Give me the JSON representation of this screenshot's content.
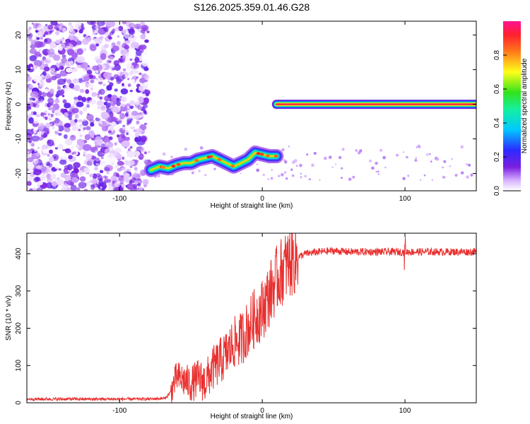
{
  "title": "S126.2025.359.01.46.G28",
  "colors": {
    "snr_line": "#e8302f",
    "frame": "#000000"
  },
  "chart_data": [
    {
      "type": "heatmap",
      "xlabel": "Height of straight line (km)",
      "ylabel": "Frequency (Hz)",
      "xlim": [
        -165,
        150
      ],
      "ylim": [
        -25,
        24
      ],
      "xticks": [
        -100,
        0,
        100
      ],
      "xtick_labels": [
        "-100",
        "0",
        "100"
      ],
      "yticks": [
        -20,
        -10,
        0,
        10,
        20
      ],
      "ytick_labels": [
        "-20",
        "-10",
        "0",
        "10",
        "20"
      ],
      "colorbar": {
        "label": "Normalized spectral amplitude",
        "range": [
          0,
          1
        ],
        "ticks": [
          0,
          0.2,
          0.4,
          0.6,
          0.8
        ],
        "tick_labels": [
          "0.0",
          "0.2",
          "0.4",
          "0.6",
          "0.8"
        ],
        "colormap": "rainbow (white-violet-blue-cyan-green-yellow-red-magenta)"
      },
      "noise_region": {
        "x_range": [
          -165,
          -80
        ],
        "y_range": [
          -25,
          24
        ],
        "amplitude": 0.1
      },
      "signal_tracks": [
        {
          "x": [
            -78,
            -72,
            -66,
            -60,
            -55,
            -50,
            -45,
            -40,
            -35,
            -30,
            -25,
            -20,
            -15,
            -10,
            -5,
            0,
            5,
            10
          ],
          "y": [
            -19,
            -18,
            -18.5,
            -17.5,
            -17,
            -17,
            -16,
            -15.5,
            -15,
            -16,
            -17,
            -18,
            -17,
            -16,
            -14,
            -14.5,
            -15,
            -15
          ],
          "amplitude": 0.75
        },
        {
          "x": [
            10,
            150
          ],
          "y": [
            0,
            0
          ],
          "amplitude": 0.95
        }
      ]
    },
    {
      "type": "line",
      "xlabel": "Height of straight line (km)",
      "ylabel": "SNR (10 * v/v)",
      "xlim": [
        -165,
        150
      ],
      "ylim": [
        0,
        455
      ],
      "xticks": [
        -100,
        0,
        100
      ],
      "xtick_labels": [
        "-100",
        "0",
        "100"
      ],
      "yticks": [
        0,
        100,
        200,
        300,
        400
      ],
      "ytick_labels": [
        "0",
        "100",
        "200",
        "300",
        "400"
      ],
      "series": [
        {
          "x": [
            -165,
            -140,
            -120,
            -100,
            -80,
            -68,
            -64,
            -60,
            -55,
            -50,
            -45,
            -40,
            -35,
            -30,
            -25,
            -20,
            -15,
            -10,
            -5,
            0,
            5,
            10,
            15,
            20,
            25,
            30,
            40,
            50,
            60,
            80,
            100,
            120,
            150
          ],
          "values": [
            10,
            10,
            10,
            10,
            10,
            12,
            30,
            70,
            60,
            50,
            65,
            55,
            90,
            110,
            130,
            160,
            170,
            200,
            230,
            250,
            290,
            330,
            360,
            380,
            390,
            400,
            405,
            408,
            405,
            405,
            405,
            405,
            405
          ]
        }
      ]
    }
  ]
}
